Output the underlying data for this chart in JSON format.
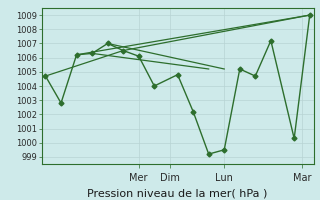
{
  "title": "Pression niveau de la mer( hPa )",
  "bg_color": "#ceeaea",
  "grid_color": "#b8d4d4",
  "line_color": "#2d6e2d",
  "ylim": [
    998.5,
    1009.5
  ],
  "yticks": [
    999,
    1000,
    1001,
    1002,
    1003,
    1004,
    1005,
    1006,
    1007,
    1008,
    1009
  ],
  "day_labels": [
    "Mer",
    "Dim",
    "Lun",
    "Mar"
  ],
  "total_x_points": 35,
  "series_main": {
    "x": [
      0,
      2,
      4,
      6,
      8,
      10,
      12,
      14,
      17,
      19,
      21,
      23,
      25,
      27,
      29,
      32,
      34
    ],
    "y": [
      1004.7,
      1002.8,
      1006.2,
      1006.3,
      1007.0,
      1006.5,
      1006.1,
      1004.0,
      1004.8,
      1002.2,
      999.2,
      999.5,
      1005.2,
      1004.7,
      1007.2,
      1000.3,
      1009.0
    ]
  },
  "series_lines": [
    {
      "x": [
        0,
        10,
        34
      ],
      "y": [
        1004.7,
        1006.5,
        1009.0
      ]
    },
    {
      "x": [
        4,
        34
      ],
      "y": [
        1006.2,
        1009.0
      ]
    },
    {
      "x": [
        6,
        21
      ],
      "y": [
        1006.3,
        1005.2
      ]
    },
    {
      "x": [
        8,
        23
      ],
      "y": [
        1007.0,
        1005.2
      ]
    }
  ],
  "xlim": [
    -0.5,
    34.5
  ],
  "xtick_positions": [
    12,
    16,
    23,
    33
  ],
  "xlabel_fontsize": 8,
  "ytick_fontsize": 6
}
